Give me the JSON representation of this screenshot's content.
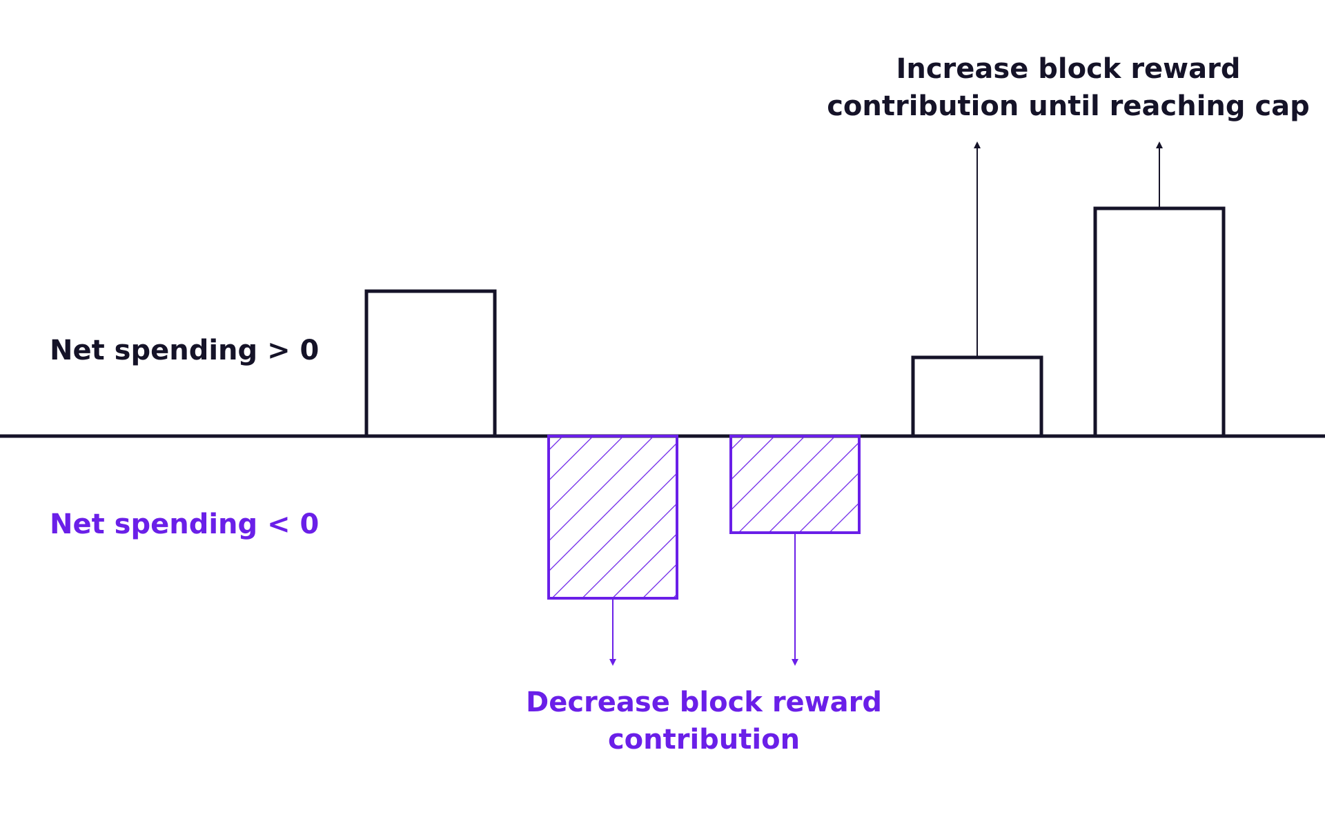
{
  "colors": {
    "positive": "#151328",
    "negative": "#6a1fe8",
    "background": "#ffffff"
  },
  "labels": {
    "net_positive": "Net spending > 0",
    "net_negative": "Net spending < 0",
    "increase_line1": "Increase block reward",
    "increase_line2": "contribution until reaching cap",
    "decrease_line1": "Decrease block reward",
    "decrease_line2": "contribution"
  },
  "bars": [
    {
      "sign": "positive",
      "relative_height": 0.21
    },
    {
      "sign": "negative",
      "relative_height": 0.235
    },
    {
      "sign": "negative",
      "relative_height": 0.14
    },
    {
      "sign": "positive",
      "relative_height": 0.115
    },
    {
      "sign": "positive",
      "relative_height": 0.33
    }
  ]
}
